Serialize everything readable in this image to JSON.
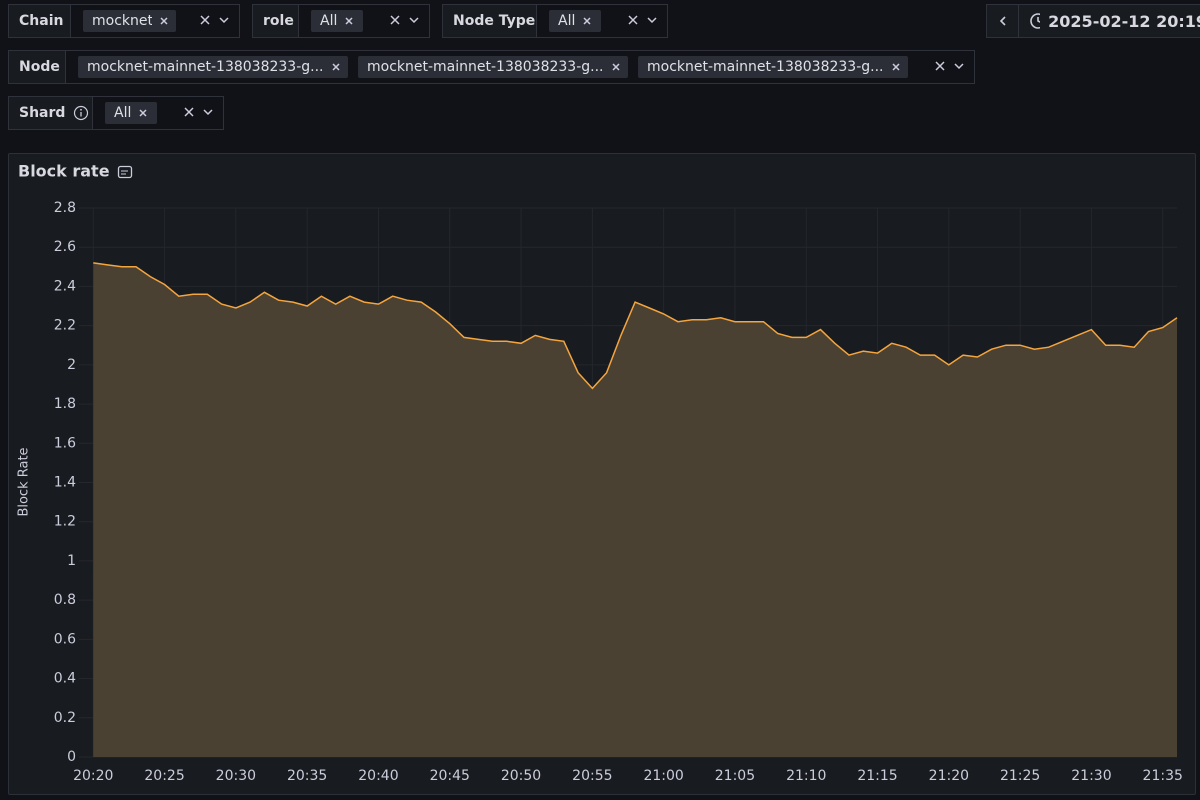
{
  "filters": [
    {
      "label": "Chain",
      "chips": [
        "mocknet"
      ]
    },
    {
      "label": "role",
      "chips": [
        "All"
      ]
    },
    {
      "label": "Node Type",
      "chips": [
        "All"
      ]
    },
    {
      "label": "Node",
      "chips": [
        "mocknet-mainnet-138038233-g...",
        "mocknet-mainnet-138038233-g...",
        "mocknet-mainnet-138038233-g..."
      ]
    },
    {
      "label": "Shard",
      "chips": [
        "All"
      ]
    }
  ],
  "time_range": "2025-02-12 20:19",
  "chart_data": {
    "type": "area",
    "title": "Block rate",
    "ylabel": "Block Rate",
    "x": [
      "20:20",
      "20:21",
      "20:22",
      "20:23",
      "20:24",
      "20:25",
      "20:26",
      "20:27",
      "20:28",
      "20:29",
      "20:30",
      "20:31",
      "20:32",
      "20:33",
      "20:34",
      "20:35",
      "20:36",
      "20:37",
      "20:38",
      "20:39",
      "20:40",
      "20:41",
      "20:42",
      "20:43",
      "20:44",
      "20:45",
      "20:46",
      "20:47",
      "20:48",
      "20:49",
      "20:50",
      "20:51",
      "20:52",
      "20:53",
      "20:54",
      "20:55",
      "20:56",
      "20:57",
      "20:58",
      "20:59",
      "21:00",
      "21:01",
      "21:02",
      "21:03",
      "21:04",
      "21:05",
      "21:06",
      "21:07",
      "21:08",
      "21:09",
      "21:10",
      "21:11",
      "21:12",
      "21:13",
      "21:14",
      "21:15",
      "21:16",
      "21:17",
      "21:18",
      "21:19",
      "21:20",
      "21:21",
      "21:22",
      "21:23",
      "21:24",
      "21:25",
      "21:26",
      "21:27",
      "21:28",
      "21:29",
      "21:30",
      "21:31",
      "21:32",
      "21:33",
      "21:34",
      "21:35",
      "21:36"
    ],
    "series": [
      {
        "color": "#f5a53e",
        "fill_color": "#4a4133",
        "values": [
          2.52,
          2.51,
          2.5,
          2.5,
          2.45,
          2.41,
          2.35,
          2.36,
          2.36,
          2.31,
          2.29,
          2.32,
          2.37,
          2.33,
          2.32,
          2.3,
          2.35,
          2.31,
          2.35,
          2.32,
          2.31,
          2.35,
          2.33,
          2.32,
          2.27,
          2.21,
          2.14,
          2.13,
          2.12,
          2.12,
          2.11,
          2.15,
          2.13,
          2.12,
          1.96,
          1.88,
          1.96,
          2.15,
          2.32,
          2.29,
          2.26,
          2.22,
          2.23,
          2.23,
          2.24,
          2.22,
          2.22,
          2.22,
          2.16,
          2.14,
          2.14,
          2.18,
          2.11,
          2.05,
          2.07,
          2.06,
          2.11,
          2.09,
          2.05,
          2.05,
          2.0,
          2.05,
          2.04,
          2.08,
          2.1,
          2.1,
          2.08,
          2.09,
          2.12,
          2.15,
          2.18,
          2.1,
          2.1,
          2.09,
          2.17,
          2.19,
          2.24
        ]
      }
    ],
    "xlim": [
      "20:19",
      "21:36"
    ],
    "xticks": [
      "20:20",
      "20:25",
      "20:30",
      "20:35",
      "20:40",
      "20:45",
      "20:50",
      "20:55",
      "21:00",
      "21:05",
      "21:10",
      "21:15",
      "21:20",
      "21:25",
      "21:30",
      "21:35"
    ],
    "ylim": [
      0,
      2.8
    ],
    "yticks": [
      0,
      0.2,
      0.4,
      0.6,
      0.8,
      1,
      1.2,
      1.4,
      1.6,
      1.8,
      2,
      2.2,
      2.4,
      2.6,
      2.8
    ],
    "grid": true
  }
}
